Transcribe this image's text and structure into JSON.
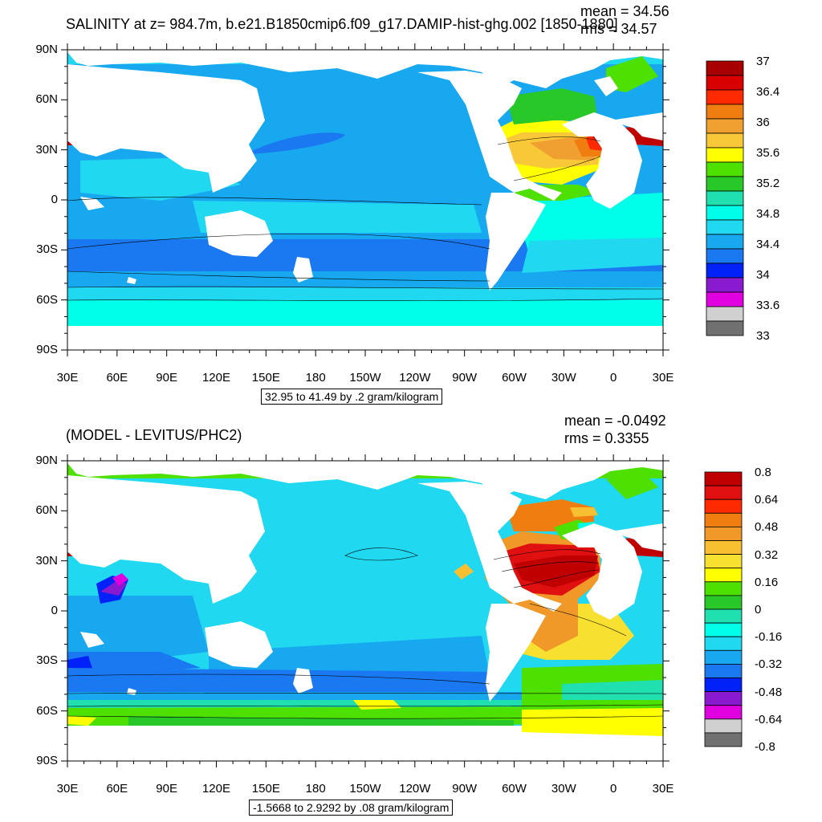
{
  "panels": [
    {
      "title": "SALINITY at z= 984.7m, b.e21.B1850cmip6.f09_g17.DAMIP-hist-ghg.002 [1850-1880]",
      "mean": "mean = 34.56",
      "rms": "rms = 34.57",
      "units": "32.95 to 41.49 by .2 gram/kilogram",
      "colorbar": {
        "labels": [
          "37",
          "36.4",
          "36",
          "35.6",
          "35.2",
          "34.8",
          "34.4",
          "34",
          "33.6",
          "33"
        ],
        "colors": [
          "#a80000",
          "#d80000",
          "#ff2a00",
          "#f07d10",
          "#f0a030",
          "#f8c838",
          "#ffff00",
          "#4ee000",
          "#28c828",
          "#20e0b0",
          "#00ffe8",
          "#20d8f0",
          "#18a8f0",
          "#1a78f0",
          "#0022f8",
          "#8a1ad0",
          "#e000e0",
          "#d0d0d0",
          "#707070"
        ]
      }
    },
    {
      "title": "(MODEL - LEVITUS/PHC2)",
      "mean": "mean = -0.0492",
      "rms": "rms = 0.3355",
      "units": "-1.5668 to 2.9292 by .08 gram/kilogram",
      "colorbar": {
        "labels": [
          "0.8",
          "0.64",
          "0.48",
          "0.32",
          "0.16",
          "0",
          "-0.16",
          "-0.32",
          "-0.48",
          "-0.64",
          "-0.8"
        ],
        "colors": [
          "#c00000",
          "#e01010",
          "#ff2a00",
          "#f07d10",
          "#f09828",
          "#f8c030",
          "#f8e030",
          "#ffff00",
          "#4ee000",
          "#28c828",
          "#20e0b0",
          "#00ffe8",
          "#20d8f0",
          "#18a8f0",
          "#1a78f0",
          "#0022f8",
          "#8a1ad0",
          "#e000e0",
          "#d0d0d0",
          "#707070"
        ]
      }
    }
  ],
  "axes": {
    "lat_labels": [
      "90N",
      "60N",
      "30N",
      "0",
      "30S",
      "60S",
      "90S"
    ],
    "lon_labels": [
      "30E",
      "60E",
      "90E",
      "120E",
      "150E",
      "180",
      "150W",
      "120W",
      "90W",
      "60W",
      "30W",
      "0",
      "30E"
    ]
  }
}
